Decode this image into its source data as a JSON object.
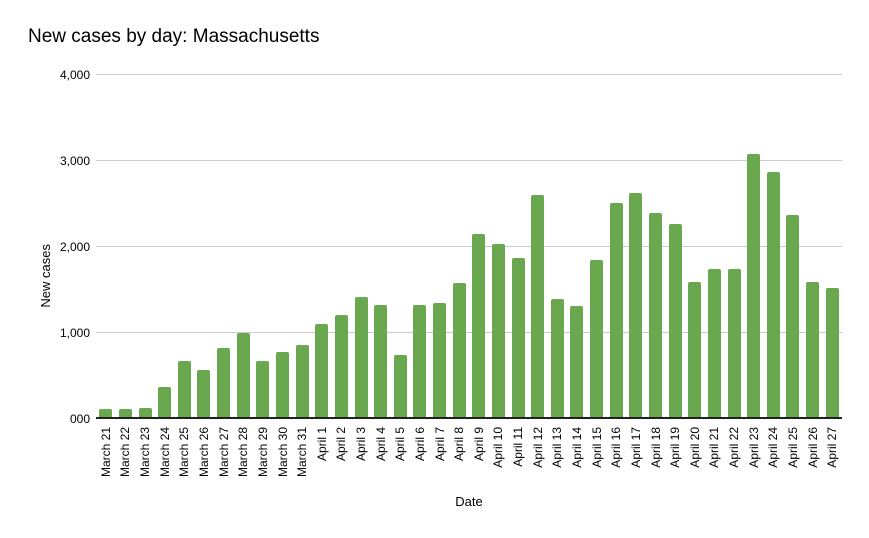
{
  "chart_data": {
    "type": "bar",
    "title": "New cases by day: Massachusetts",
    "xlabel": "Date",
    "ylabel": "New cases",
    "legend": "none",
    "grid": true,
    "ylim": [
      0,
      4000
    ],
    "yticks": [
      {
        "value": 0,
        "label": "000"
      },
      {
        "value": 1000,
        "label": "1,000"
      },
      {
        "value": 2000,
        "label": "2,000"
      },
      {
        "value": 3000,
        "label": "3,000"
      },
      {
        "value": 4000,
        "label": "4,000"
      }
    ],
    "categories": [
      "March 21",
      "March 22",
      "March 23",
      "March 24",
      "March 25",
      "March 26",
      "March 27",
      "March 28",
      "March 29",
      "March 30",
      "March 31",
      "April 1",
      "April 2",
      "April 3",
      "April 4",
      "April 5",
      "April 6",
      "April 7",
      "April 8",
      "April 9",
      "April 10",
      "April 11",
      "April 12",
      "April 13",
      "April 14",
      "April 15",
      "April 16",
      "April 17",
      "April 18",
      "April 19",
      "April 20",
      "April 21",
      "April 22",
      "April 23",
      "April 24",
      "April 25",
      "April 26",
      "April 27"
    ],
    "values": [
      120,
      115,
      130,
      370,
      680,
      570,
      820,
      1000,
      680,
      780,
      860,
      1110,
      1210,
      1420,
      1330,
      750,
      1330,
      1350,
      1580,
      2150,
      2030,
      1870,
      2600,
      1400,
      1310,
      1850,
      2510,
      2630,
      2390,
      2270,
      1590,
      1750,
      1740,
      3080,
      2870,
      2370,
      1590,
      1520
    ],
    "bar_color": "#6aa84f",
    "gridline_color": "#cccccc",
    "axis_line_color": "#212121",
    "text_color": "#000000",
    "background_color": "#ffffff"
  }
}
